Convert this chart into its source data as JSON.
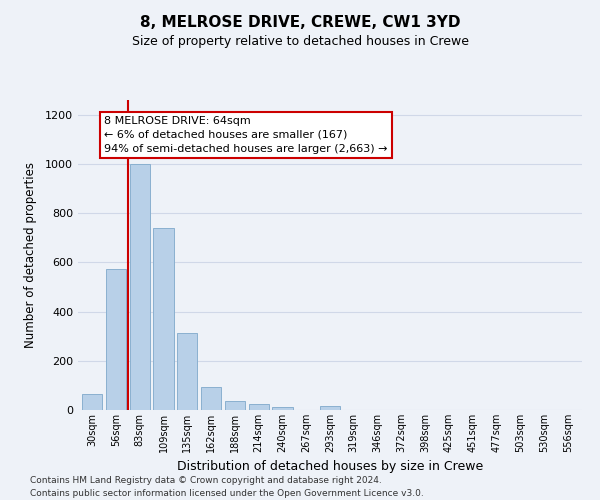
{
  "title": "8, MELROSE DRIVE, CREWE, CW1 3YD",
  "subtitle": "Size of property relative to detached houses in Crewe",
  "xlabel": "Distribution of detached houses by size in Crewe",
  "ylabel": "Number of detached properties",
  "categories": [
    "30sqm",
    "56sqm",
    "83sqm",
    "109sqm",
    "135sqm",
    "162sqm",
    "188sqm",
    "214sqm",
    "240sqm",
    "267sqm",
    "293sqm",
    "319sqm",
    "346sqm",
    "372sqm",
    "398sqm",
    "425sqm",
    "451sqm",
    "477sqm",
    "503sqm",
    "530sqm",
    "556sqm"
  ],
  "values": [
    65,
    575,
    1000,
    740,
    315,
    95,
    38,
    25,
    12,
    0,
    15,
    0,
    0,
    0,
    0,
    0,
    0,
    0,
    0,
    0,
    0
  ],
  "bar_color": "#b8d0e8",
  "bar_edge_color": "#8ab0d0",
  "grid_color": "#d0d8e8",
  "bg_color": "#eef2f8",
  "annotation_text": "8 MELROSE DRIVE: 64sqm\n← 6% of detached houses are smaller (167)\n94% of semi-detached houses are larger (2,663) →",
  "annotation_box_color": "#ffffff",
  "annotation_box_edge": "#cc0000",
  "red_line_color": "#cc0000",
  "footer1": "Contains HM Land Registry data © Crown copyright and database right 2024.",
  "footer2": "Contains public sector information licensed under the Open Government Licence v3.0.",
  "ylim": [
    0,
    1260
  ],
  "yticks": [
    0,
    200,
    400,
    600,
    800,
    1000,
    1200
  ]
}
